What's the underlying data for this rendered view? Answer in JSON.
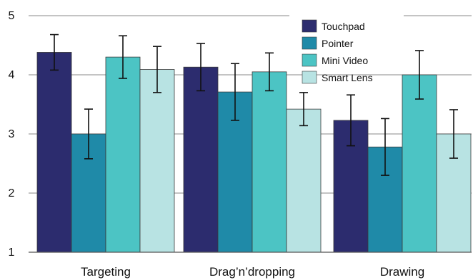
{
  "chart_data": {
    "type": "bar",
    "categories": [
      "Targeting",
      "Drag’n’dropping",
      "Drawing"
    ],
    "series": [
      {
        "name": "Touchpad",
        "color": "#2c2c6e",
        "values": [
          4.38,
          4.13,
          3.23
        ],
        "error": [
          0.3,
          0.4,
          0.43
        ]
      },
      {
        "name": "Pointer",
        "color": "#1f8aa8",
        "values": [
          3.0,
          3.71,
          2.78
        ],
        "error": [
          0.42,
          0.48,
          0.48
        ]
      },
      {
        "name": "Mini Video",
        "color": "#4cc4c4",
        "values": [
          4.3,
          4.05,
          4.0
        ],
        "error": [
          0.36,
          0.32,
          0.41
        ]
      },
      {
        "name": "Smart Lens",
        "color": "#b8e3e3",
        "values": [
          4.09,
          3.42,
          3.0
        ],
        "error": [
          0.39,
          0.28,
          0.41
        ]
      }
    ],
    "ylim": [
      1,
      5
    ],
    "yticks": [
      1,
      2,
      3,
      4,
      5
    ],
    "ytick_labels": [
      "1",
      "2",
      "3",
      "4",
      "5"
    ],
    "title": "",
    "xlabel": "",
    "ylabel": "",
    "grid": true,
    "legend_position": "top-right"
  }
}
